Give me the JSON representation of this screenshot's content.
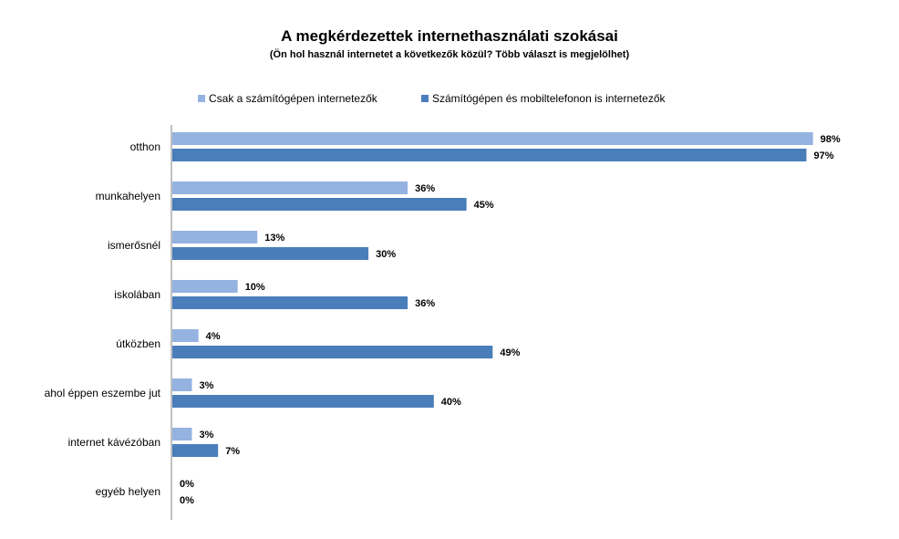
{
  "chart_data": {
    "type": "bar",
    "orientation": "horizontal",
    "title": "A megkérdezettek internethasználati szokásai",
    "subtitle": "(Ön hol használ internetet a következők közül? Több választ is megjelölhet)",
    "categories": [
      "otthon",
      "munkahelyen",
      "ismerősnél",
      "iskolában",
      "útközben",
      "ahol éppen eszembe jut",
      "internet kávézóban",
      "egyéb helyen"
    ],
    "series": [
      {
        "name": "Csak a számítógépen internetezők",
        "color": "#95b3e1",
        "values": [
          98,
          36,
          13,
          10,
          4,
          3,
          3,
          0
        ],
        "labels": [
          "98%",
          "36%",
          "13%",
          "10%",
          "4%",
          "3%",
          "3%",
          "0%"
        ]
      },
      {
        "name": "Számítógépen és mobiltelefonon is internetezők",
        "color": "#4a7ebb",
        "values": [
          97,
          45,
          30,
          36,
          49,
          40,
          7,
          0
        ],
        "labels": [
          "97%",
          "45%",
          "30%",
          "36%",
          "49%",
          "40%",
          "7%",
          "0%"
        ]
      }
    ],
    "xlim": [
      0,
      100
    ],
    "grid": false,
    "legend_position": "top"
  }
}
